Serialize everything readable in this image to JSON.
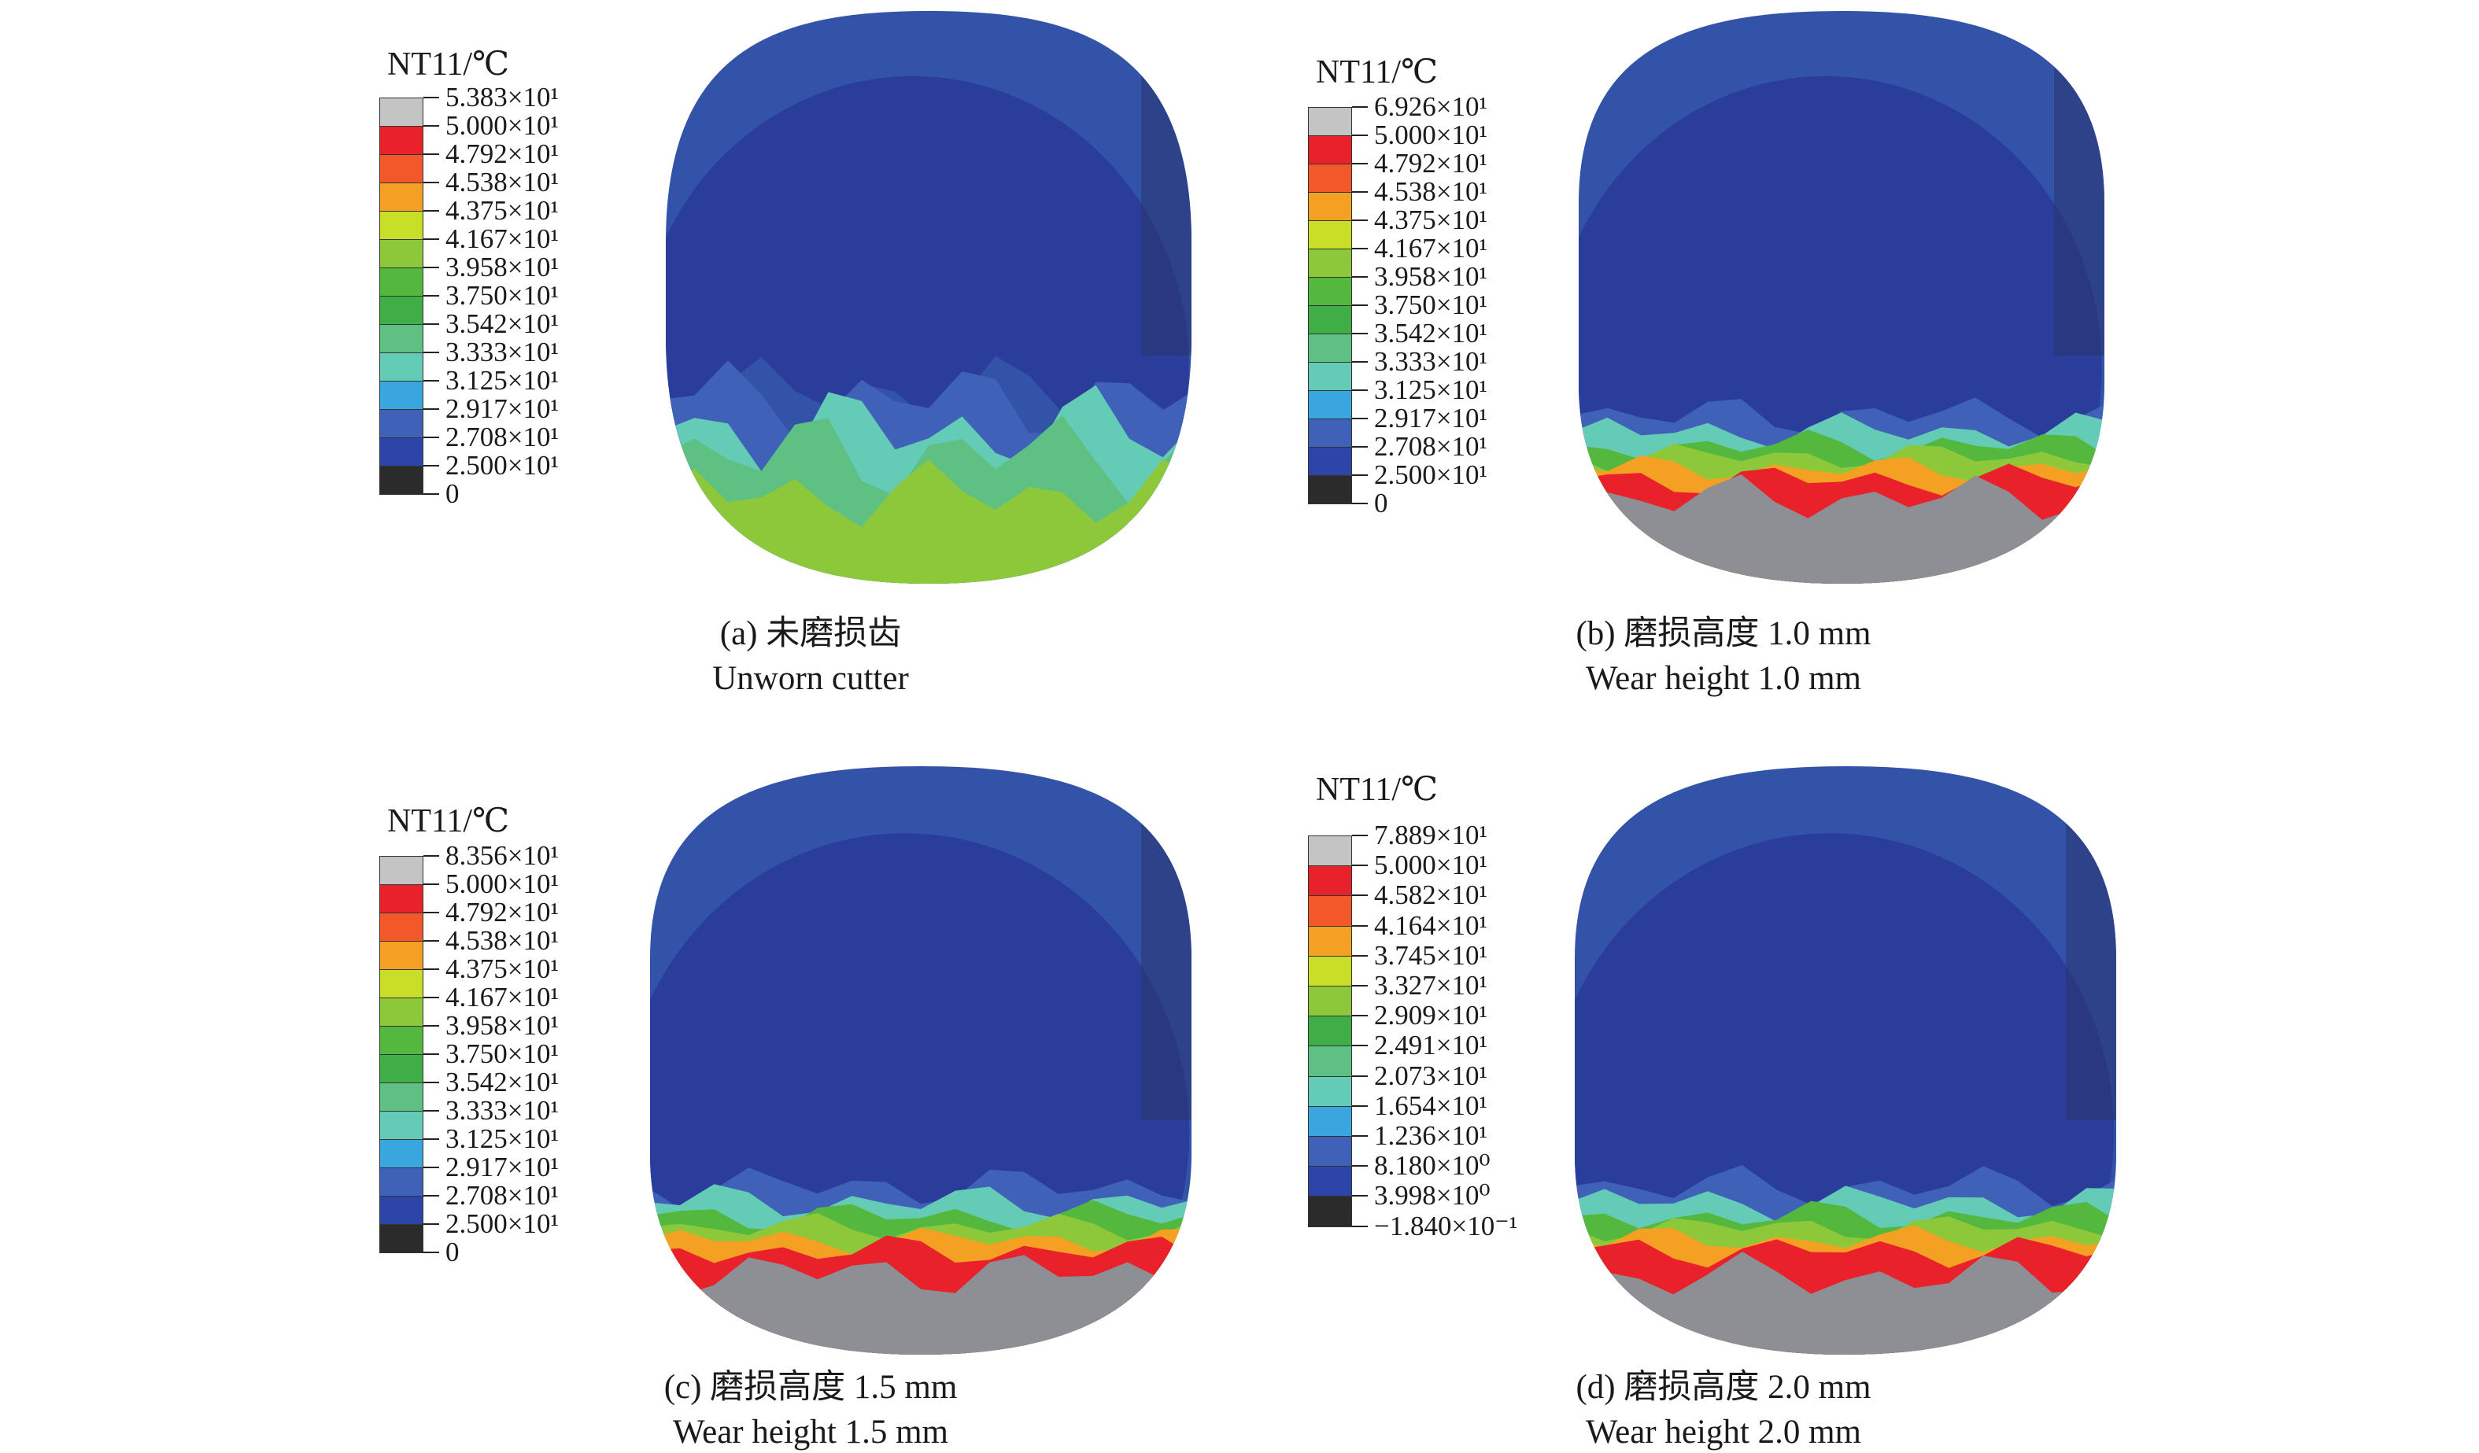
{
  "panels": [
    {
      "id": "a",
      "legend_title": "NT11/℃",
      "legend_labels": [
        "5.383×10¹",
        "5.000×10¹",
        "4.792×10¹",
        "4.538×10¹",
        "4.375×10¹",
        "4.167×10¹",
        "3.958×10¹",
        "3.750×10¹",
        "3.542×10¹",
        "3.333×10¹",
        "3.125×10¹",
        "2.917×10¹",
        "2.708×10¹",
        "2.500×10¹",
        "0"
      ],
      "caption_cn": "(a) 未磨损齿",
      "caption_en": "Unworn cutter",
      "wear_height_mm": 0
    },
    {
      "id": "b",
      "legend_title": "NT11/℃",
      "legend_labels": [
        "6.926×10¹",
        "5.000×10¹",
        "4.792×10¹",
        "4.538×10¹",
        "4.375×10¹",
        "4.167×10¹",
        "3.958×10¹",
        "3.750×10¹",
        "3.542×10¹",
        "3.333×10¹",
        "3.125×10¹",
        "2.917×10¹",
        "2.708×10¹",
        "2.500×10¹",
        "0"
      ],
      "caption_cn": "(b) 磨损高度 1.0 mm",
      "caption_en": "Wear height 1.0 mm",
      "wear_height_mm": 1.0
    },
    {
      "id": "c",
      "legend_title": "NT11/℃",
      "legend_labels": [
        "8.356×10¹",
        "5.000×10¹",
        "4.792×10¹",
        "4.538×10¹",
        "4.375×10¹",
        "4.167×10¹",
        "3.958×10¹",
        "3.750×10¹",
        "3.542×10¹",
        "3.333×10¹",
        "3.125×10¹",
        "2.917×10¹",
        "2.708×10¹",
        "2.500×10¹",
        "0"
      ],
      "caption_cn": "(c) 磨损高度 1.5 mm",
      "caption_en": "Wear height 1.5 mm",
      "wear_height_mm": 1.5
    },
    {
      "id": "d",
      "legend_title": "NT11/℃",
      "legend_labels": [
        "7.889×10¹",
        "5.000×10¹",
        "4.582×10¹",
        "4.164×10¹",
        "3.745×10¹",
        "3.327×10¹",
        "2.909×10¹",
        "2.491×10¹",
        "2.073×10¹",
        "1.654×10¹",
        "1.236×10¹",
        "8.180×10⁰",
        "3.998×10⁰",
        "−1.840×10⁻¹"
      ],
      "caption_cn": "(d) 磨损高度 2.0 mm",
      "caption_en": "Wear height 2.0 mm",
      "wear_height_mm": 2.0
    }
  ],
  "colors": {
    "band_colors": [
      "#c4c4c4",
      "#e8212a",
      "#f2582a",
      "#f4a023",
      "#c9de26",
      "#8cc83a",
      "#54b83f",
      "#3fae47",
      "#5ec082",
      "#64cbb6",
      "#3aa6df",
      "#3f62b8",
      "#2d45a8",
      "#2b2b2b"
    ],
    "cutter_top": "#3253a8",
    "cutter_body": "#2a3d9a",
    "cutter_edge": "#2a3470",
    "hot_gray": "#8e8e95"
  }
}
